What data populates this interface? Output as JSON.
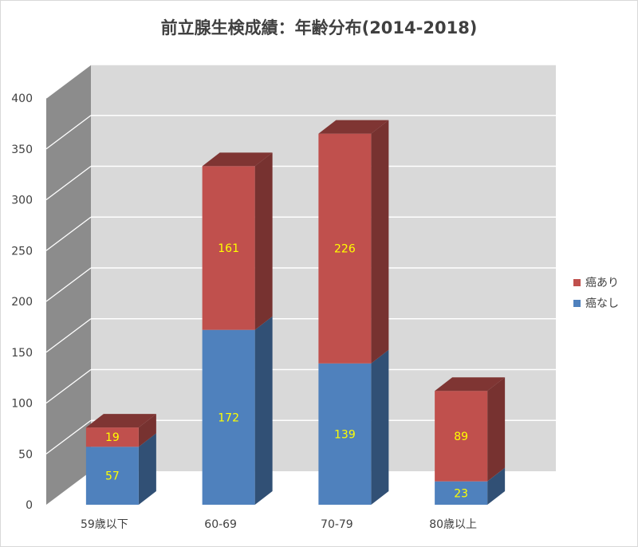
{
  "chart_data": {
    "type": "bar",
    "stacked": true,
    "three_d": true,
    "title": "前立腺生検成績：年齢分布(2014-2018)",
    "categories": [
      "59歳以下",
      "60-69",
      "70-79",
      "80歳以上"
    ],
    "series": [
      {
        "name": "癌なし",
        "values": [
          57,
          172,
          139,
          23
        ],
        "color": "#4f81bd"
      },
      {
        "name": "癌あり",
        "values": [
          19,
          161,
          226,
          89
        ],
        "color": "#c0504d"
      }
    ],
    "ylim": [
      0,
      400
    ],
    "yticks": [
      0,
      50,
      100,
      150,
      200,
      250,
      300,
      350,
      400
    ],
    "gridlines": true,
    "legend_position": "right",
    "data_label_color": "#ffff00"
  }
}
